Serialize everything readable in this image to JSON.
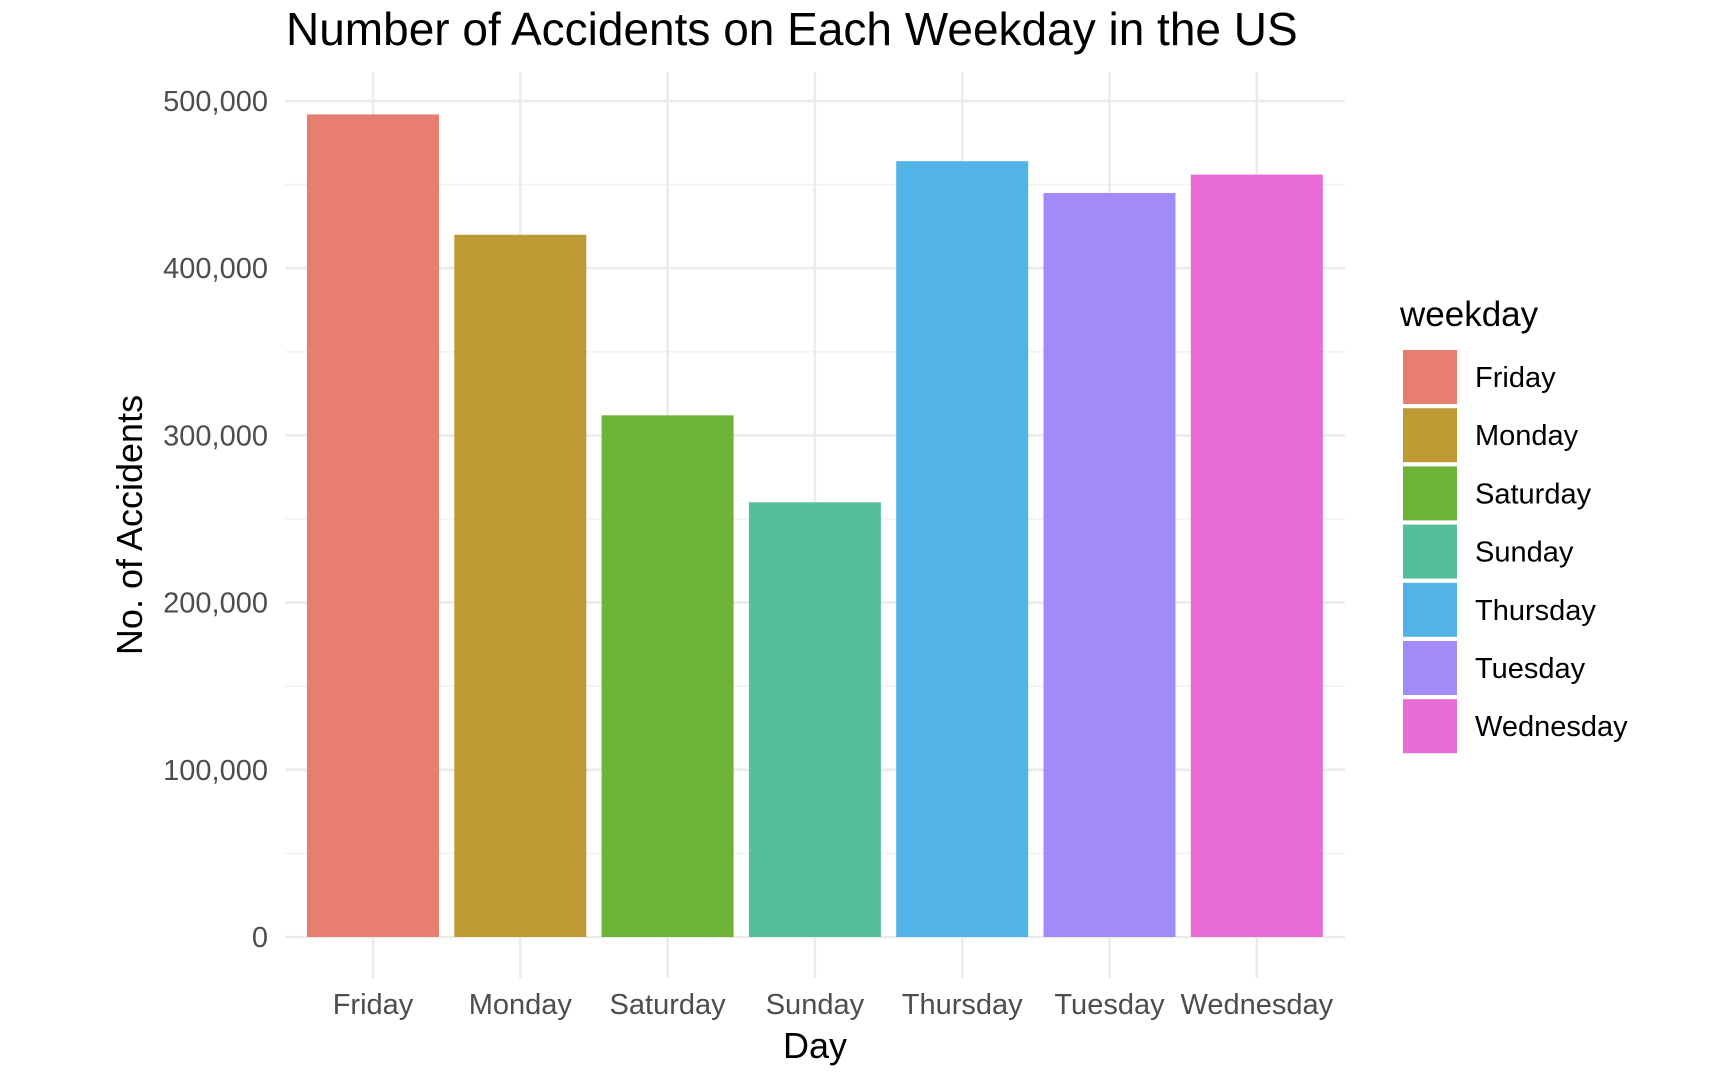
{
  "chart_data": {
    "type": "bar",
    "title": "Number of Accidents on Each Weekday in the US",
    "xlabel": "Day",
    "ylabel": "No. of Accidents",
    "categories": [
      "Friday",
      "Monday",
      "Saturday",
      "Sunday",
      "Thursday",
      "Tuesday",
      "Wednesday"
    ],
    "values": [
      492000,
      420000,
      312000,
      260000,
      464000,
      445000,
      456000
    ],
    "colors": [
      "#E87E72",
      "#BD9A34",
      "#6DB338",
      "#56BF99",
      "#52B3E6",
      "#A18BF8",
      "#E76CD3"
    ],
    "ylim": [
      0,
      500000
    ],
    "yticks": [
      0,
      100000,
      200000,
      300000,
      400000,
      500000
    ],
    "ytick_labels": [
      "0",
      "100,000",
      "200,000",
      "300,000",
      "400,000",
      "500,000"
    ],
    "grid": true,
    "legend": {
      "title": "weekday",
      "position": "right",
      "entries": [
        "Friday",
        "Monday",
        "Saturday",
        "Sunday",
        "Thursday",
        "Tuesday",
        "Wednesday"
      ]
    }
  }
}
